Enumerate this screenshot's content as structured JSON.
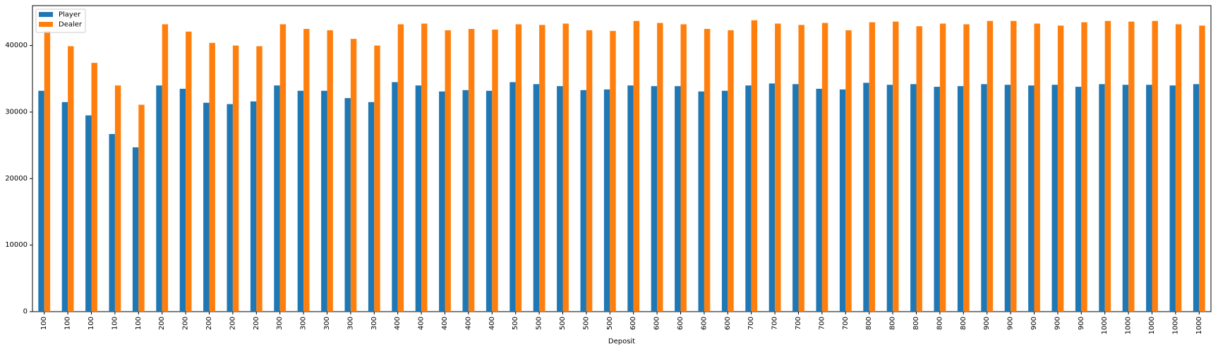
{
  "chart_data": {
    "type": "bar",
    "title": "",
    "xlabel": "Deposit",
    "ylabel": "",
    "ylim": [
      0,
      46000
    ],
    "yticks": [
      0,
      10000,
      20000,
      30000,
      40000
    ],
    "grid": false,
    "legend_position": "top-left",
    "categories": [
      "100",
      "100",
      "100",
      "100",
      "100",
      "200",
      "200",
      "200",
      "200",
      "200",
      "300",
      "300",
      "300",
      "300",
      "300",
      "400",
      "400",
      "400",
      "400",
      "400",
      "500",
      "500",
      "500",
      "500",
      "500",
      "600",
      "600",
      "600",
      "600",
      "600",
      "700",
      "700",
      "700",
      "700",
      "700",
      "800",
      "800",
      "800",
      "800",
      "800",
      "900",
      "900",
      "900",
      "900",
      "900",
      "1000",
      "1000",
      "1000",
      "1000",
      "1000"
    ],
    "series": [
      {
        "name": "Player",
        "color": "#1f77b4",
        "values": [
          33200,
          31500,
          29500,
          26700,
          24700,
          34000,
          33500,
          31400,
          31200,
          31600,
          34000,
          33200,
          33200,
          32100,
          31500,
          34500,
          34000,
          33100,
          33300,
          33200,
          34500,
          34200,
          33900,
          33300,
          33400,
          34000,
          33900,
          33900,
          33100,
          33200,
          34000,
          34300,
          34200,
          33500,
          33400,
          34400,
          34100,
          34200,
          33800,
          33900,
          34200,
          34100,
          34000,
          34100,
          33800,
          34200,
          34100,
          34100,
          34000,
          34200
        ]
      },
      {
        "name": "Dealer",
        "color": "#ff7f0e",
        "values": [
          42200,
          39900,
          37400,
          34000,
          31100,
          43200,
          42100,
          40400,
          40000,
          39900,
          43200,
          42500,
          42300,
          41000,
          40000,
          43200,
          43300,
          42300,
          42500,
          42400,
          43200,
          43100,
          43300,
          42300,
          42200,
          43700,
          43400,
          43200,
          42500,
          42300,
          43800,
          43300,
          43100,
          43400,
          42300,
          43500,
          43600,
          42900,
          43300,
          43200,
          43700,
          43700,
          43300,
          43000,
          43500,
          43700,
          43600,
          43700,
          43200,
          43000
        ]
      }
    ]
  }
}
